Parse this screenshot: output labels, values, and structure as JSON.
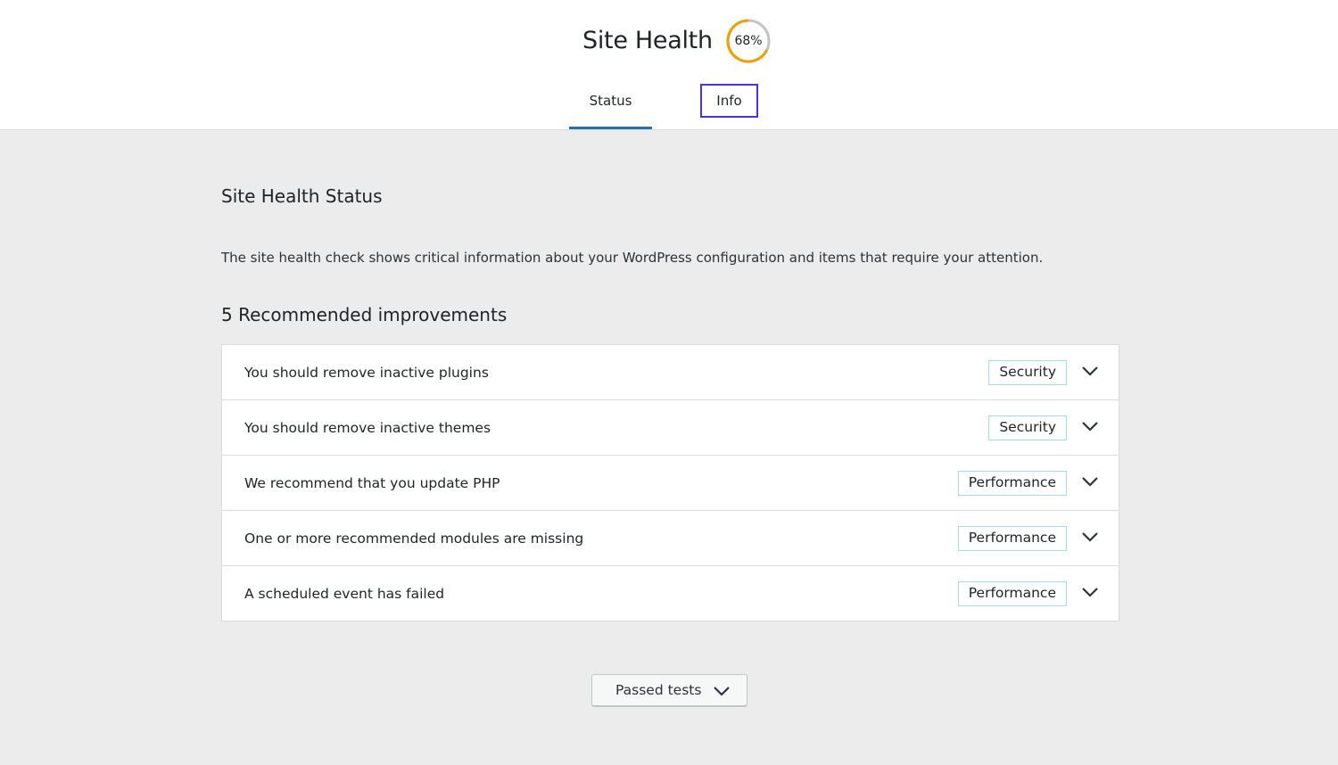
{
  "header": {
    "title": "Site Health",
    "score_text": "68%",
    "score_percent": 68,
    "score_color": "#f0a000",
    "tabs": [
      {
        "label": "Status",
        "active": true
      },
      {
        "label": "Info",
        "focused": true
      }
    ]
  },
  "main": {
    "heading": "Site Health Status",
    "description": "The site health check shows critical information about your WordPress configuration and items that require your attention.",
    "improvements_heading": "5 Recommended improvements",
    "items": [
      {
        "label": "You should remove inactive plugins",
        "badge": "Security"
      },
      {
        "label": "You should remove inactive themes",
        "badge": "Security"
      },
      {
        "label": "We recommend that you update PHP",
        "badge": "Performance"
      },
      {
        "label": "One or more recommended modules are missing",
        "badge": "Performance"
      },
      {
        "label": "A scheduled event has failed",
        "badge": "Performance"
      }
    ],
    "passed_tests_label": "Passed tests"
  }
}
